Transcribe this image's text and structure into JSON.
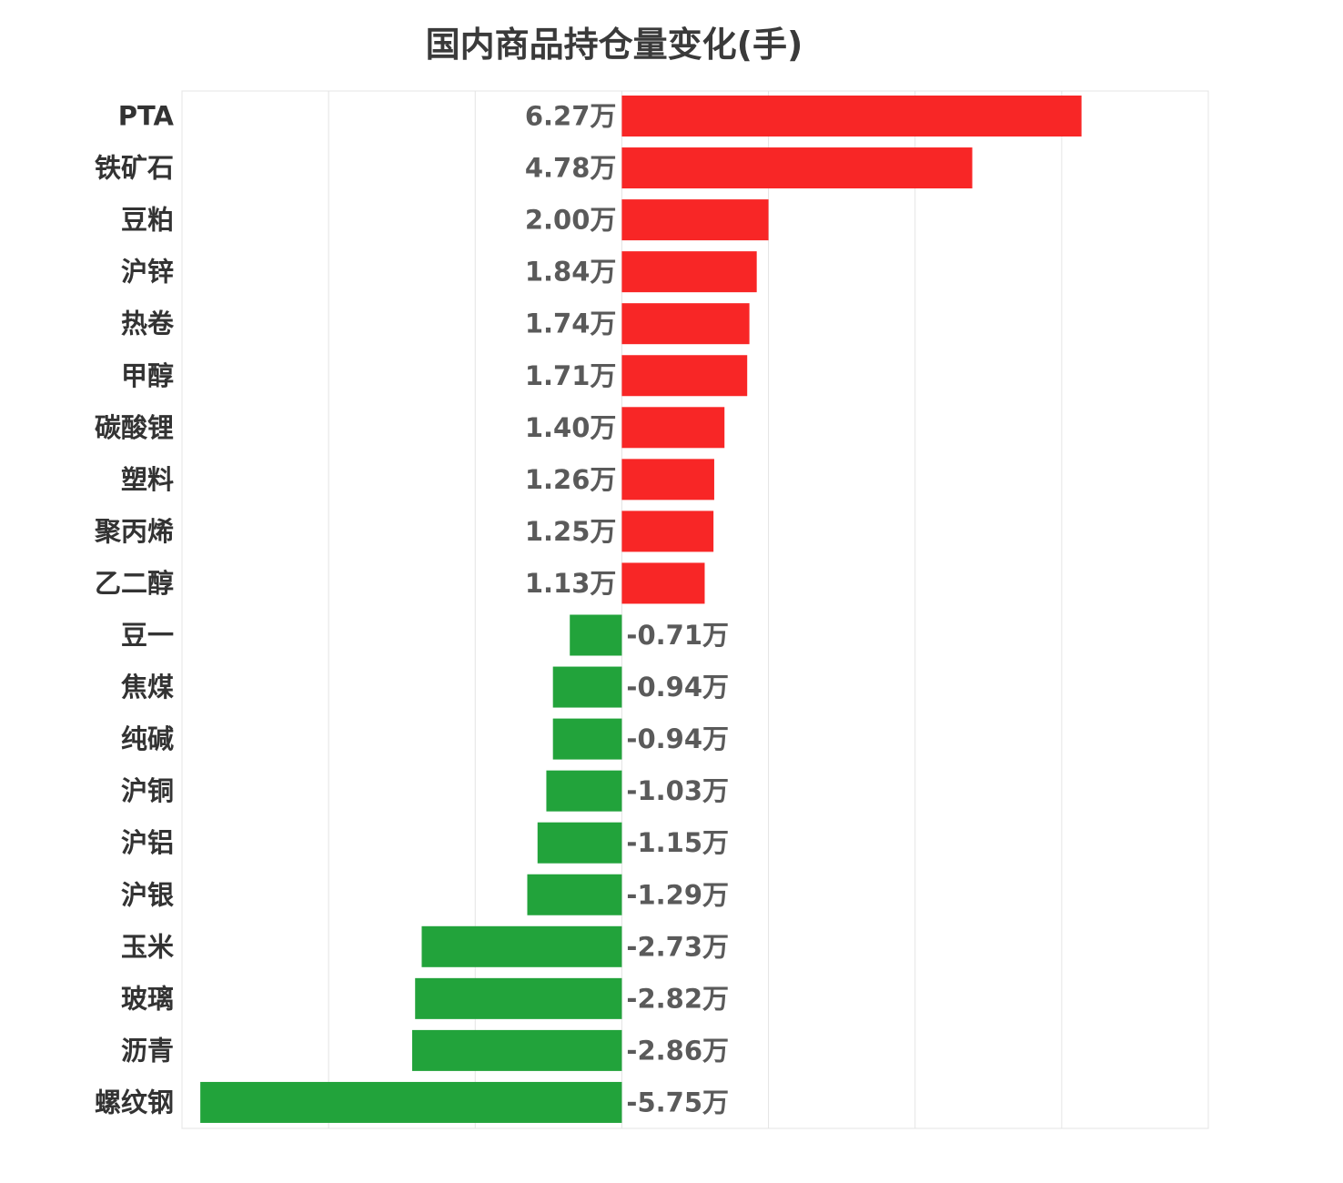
{
  "chart_data": {
    "type": "bar",
    "orientation": "horizontal",
    "title": "国内商品持仓量变化(手)",
    "unit_suffix": "万",
    "categories": [
      "PTA",
      "铁矿石",
      "豆粕",
      "沪锌",
      "热卷",
      "甲醇",
      "碳酸锂",
      "塑料",
      "聚丙烯",
      "乙二醇",
      "豆一",
      "焦煤",
      "纯碱",
      "沪铜",
      "沪铝",
      "沪银",
      "玉米",
      "玻璃",
      "沥青",
      "螺纹钢"
    ],
    "values": [
      6.27,
      4.78,
      2.0,
      1.84,
      1.74,
      1.71,
      1.4,
      1.26,
      1.25,
      1.13,
      -0.71,
      -0.94,
      -0.94,
      -1.03,
      -1.15,
      -1.29,
      -2.73,
      -2.82,
      -2.86,
      -5.75
    ],
    "value_labels": [
      "6.27万",
      "4.78万",
      "2.00万",
      "1.84万",
      "1.74万",
      "1.71万",
      "1.40万",
      "1.26万",
      "1.25万",
      "1.13万",
      "-0.71万",
      "-0.94万",
      "-0.94万",
      "-1.03万",
      "-1.15万",
      "-1.29万",
      "-2.73万",
      "-2.82万",
      "-2.86万",
      "-5.75万"
    ],
    "xlim": [
      -6,
      8
    ],
    "grid_step": 2,
    "grid": true,
    "legend": "none",
    "colors": {
      "positive": "#f82626",
      "negative": "#22a33b",
      "grid": "#e4e4e4"
    }
  }
}
